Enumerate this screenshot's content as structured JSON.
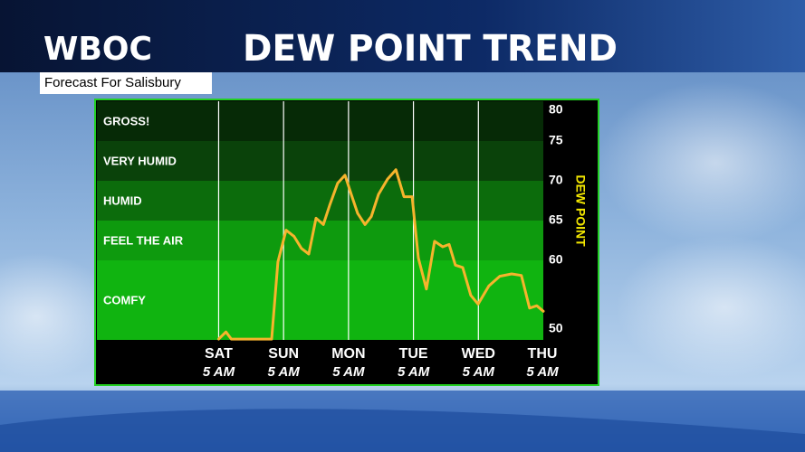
{
  "chart_data": {
    "type": "line",
    "station": "WBOC",
    "title": "DEW POINT TREND",
    "subtitle": "Forecast For Salisbury",
    "y_label": "DEW POINT",
    "color": "#f6b42c",
    "x": [
      0,
      2.7,
      4.7,
      19.6,
      21.9,
      24.9,
      27.9,
      30.6,
      33.3,
      36,
      38.7,
      41,
      44,
      46.7,
      49,
      51.4,
      54.1,
      56.4,
      59.1,
      62.4,
      65.5,
      68.5,
      71.5,
      73.8,
      76.8,
      79.8,
      82.8,
      85.2,
      87.5,
      90.2,
      93.2,
      95.9,
      99.9,
      103.9,
      108.3,
      111.9,
      114.9,
      117.6,
      120
    ],
    "values": [
      50.1,
      51,
      50.1,
      50.1,
      59.8,
      63.8,
      63,
      61.5,
      60.8,
      65.3,
      64.5,
      66.9,
      69.7,
      70.7,
      68.3,
      65.9,
      64.5,
      65.5,
      68.3,
      70.2,
      71.4,
      68,
      68,
      60.3,
      56.4,
      62.4,
      61.7,
      62,
      59.4,
      59.1,
      55.6,
      54.5,
      56.8,
      58,
      58.3,
      58.1,
      54,
      54.3,
      53.6
    ],
    "xlim": [
      -45,
      120
    ],
    "xticks": [
      {
        "value": 0,
        "label": "SAT",
        "sublabel": "5 AM"
      },
      {
        "value": 24,
        "label": "SUN",
        "sublabel": "5 AM"
      },
      {
        "value": 48,
        "label": "MON",
        "sublabel": "5 AM"
      },
      {
        "value": 72,
        "label": "TUE",
        "sublabel": "5 AM"
      },
      {
        "value": 96,
        "label": "WED",
        "sublabel": "5 AM"
      },
      {
        "value": 120,
        "label": "THU",
        "sublabel": "5 AM"
      }
    ],
    "ylim": [
      50,
      80
    ],
    "yticks": [
      50,
      60,
      65,
      70,
      75,
      80
    ],
    "zones": [
      {
        "label": "GROSS!",
        "from": 75,
        "to": 80,
        "color": "#062a06"
      },
      {
        "label": "VERY HUMID",
        "from": 70,
        "to": 75,
        "color": "#0a420a"
      },
      {
        "label": "HUMID",
        "from": 65,
        "to": 70,
        "color": "#0c6c0c"
      },
      {
        "label": "FEEL THE AIR",
        "from": 60,
        "to": 65,
        "color": "#0e9a0e"
      },
      {
        "label": "COMFY",
        "from": 50,
        "to": 60,
        "color": "#10b410"
      }
    ]
  }
}
